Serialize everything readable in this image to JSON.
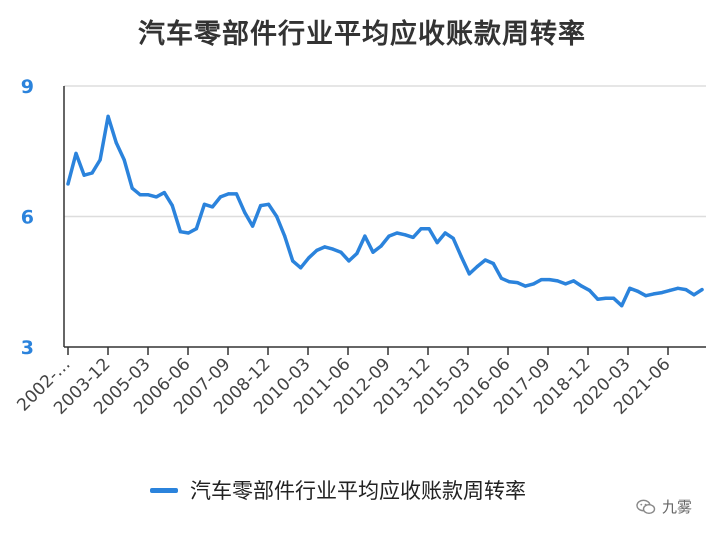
{
  "watermark": {
    "text": "九雾",
    "icon": "wechat-icon"
  },
  "colors": {
    "line": "#2b83dc",
    "grid": "#dddddd",
    "axis": "#333333",
    "ytick": "#2b83dc"
  },
  "chart_data": {
    "type": "line",
    "title": "汽车零部件行业平均应收账款周转率",
    "xlabel": "",
    "ylabel": "",
    "ylim": [
      3,
      9
    ],
    "yticks": [
      "3",
      "6",
      "9"
    ],
    "xticks": [
      "2002-…",
      "2003-12",
      "2005-03",
      "2006-06",
      "2007-09",
      "2008-12",
      "2010-03",
      "2011-06",
      "2012-09",
      "2013-12",
      "2015-03",
      "2016-06",
      "2017-09",
      "2018-12",
      "2020-03",
      "2021-06"
    ],
    "grid": true,
    "legend_position": "bottom",
    "series": [
      {
        "name": "汽车零部件行业平均应收账款周转率",
        "values": [
          6.75,
          7.45,
          6.95,
          7.0,
          7.3,
          8.3,
          7.7,
          7.3,
          6.65,
          6.5,
          6.5,
          6.45,
          6.55,
          6.25,
          5.65,
          5.62,
          5.72,
          6.28,
          6.22,
          6.45,
          6.52,
          6.52,
          6.1,
          5.78,
          6.25,
          6.28,
          6.0,
          5.55,
          4.98,
          4.82,
          5.05,
          5.22,
          5.3,
          5.25,
          5.18,
          4.98,
          5.15,
          5.55,
          5.18,
          5.32,
          5.55,
          5.62,
          5.58,
          5.52,
          5.72,
          5.72,
          5.4,
          5.62,
          5.5,
          5.08,
          4.68,
          4.85,
          5.0,
          4.92,
          4.58,
          4.5,
          4.48,
          4.4,
          4.45,
          4.55,
          4.55,
          4.52,
          4.45,
          4.52,
          4.4,
          4.3,
          4.1,
          4.12,
          4.12,
          3.95,
          4.35,
          4.28,
          4.18,
          4.22,
          4.25,
          4.3,
          4.35,
          4.32,
          4.2,
          4.32
        ]
      }
    ]
  }
}
